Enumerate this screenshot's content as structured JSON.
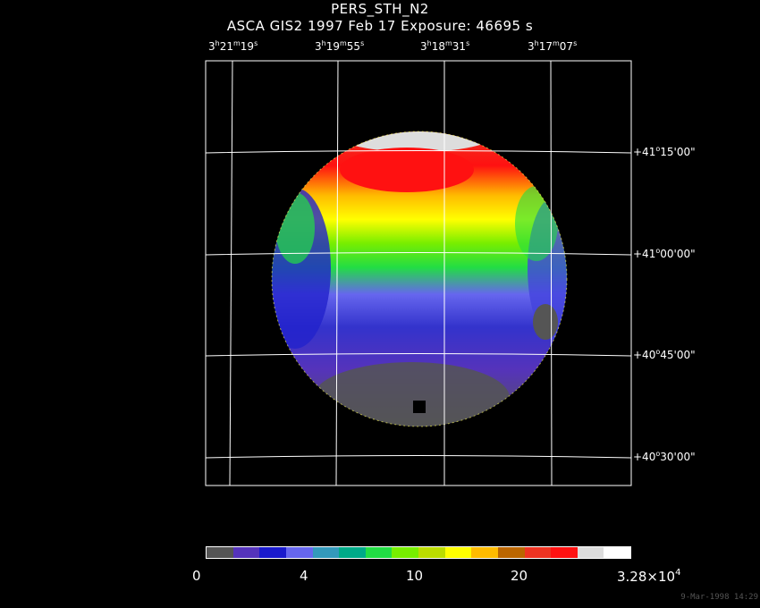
{
  "header": {
    "title": "PERS_STH_N2",
    "subtitle": "ASCA GIS2    1997 Feb 17    Exposure: 46695 s"
  },
  "ra_axis": [
    {
      "h": "3",
      "m": "21",
      "s": "19"
    },
    {
      "h": "3",
      "m": "19",
      "s": "55"
    },
    {
      "h": "3",
      "m": "18",
      "s": "31"
    },
    {
      "h": "3",
      "m": "17",
      "s": "07"
    }
  ],
  "dec_axis": [
    {
      "deg": "+41",
      "min": "15",
      "sec": "00"
    },
    {
      "deg": "+41",
      "min": "00",
      "sec": "00"
    },
    {
      "deg": "+40",
      "min": "45",
      "sec": "00"
    },
    {
      "deg": "+40",
      "min": "30",
      "sec": "00"
    }
  ],
  "colorbar": {
    "colors": [
      "#555555",
      "#5533bb",
      "#1a1acc",
      "#6666ee",
      "#3399bb",
      "#00aa88",
      "#22dd44",
      "#77ee00",
      "#bbdd00",
      "#ffff00",
      "#ffbb00",
      "#bb6600",
      "#ee3322",
      "#ff1111",
      "#dddddd",
      "#ffffff"
    ],
    "ticks": [
      "0",
      "4",
      "10",
      "20"
    ],
    "max_mantissa": "3.28×10",
    "max_exponent": "4"
  },
  "footer": {
    "timestamp": "9-Mar-1998 14:29"
  },
  "colors": {
    "background": "#000000",
    "grid": "#ffffff"
  }
}
